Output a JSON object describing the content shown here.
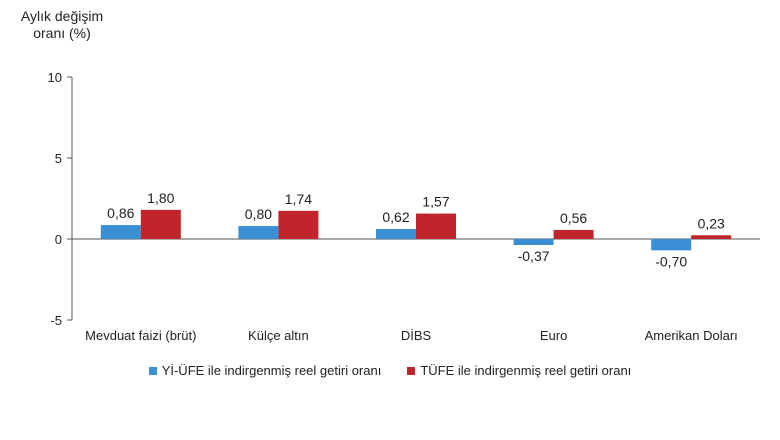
{
  "chart_data": {
    "type": "bar",
    "ylabel_line1": "Aylık değişim",
    "ylabel_line2": "oranı (%)",
    "categories": [
      "Mevduat faizi (brüt)",
      "Külçe altın",
      "DİBS",
      "Euro",
      "Amerikan Doları"
    ],
    "ylim": [
      -5,
      10
    ],
    "yticks": [
      "-5",
      "0",
      "5",
      "10"
    ],
    "series": [
      {
        "name": "Yİ-ÜFE ile indirgenmiş reel getiri oranı",
        "color": "#3a8fd4",
        "values": [
          0.86,
          0.8,
          0.62,
          -0.37,
          -0.7
        ],
        "labels": [
          "0,86",
          "0,80",
          "0,62",
          "-0,37",
          "-0,70"
        ]
      },
      {
        "name": "TÜFE ile indirgenmiş reel getiri oranı",
        "color": "#c0252c",
        "values": [
          1.8,
          1.74,
          1.57,
          0.56,
          0.23
        ],
        "labels": [
          "1,80",
          "1,74",
          "1,57",
          "0,56",
          "0,23"
        ]
      }
    ],
    "legend_position": "bottom"
  }
}
